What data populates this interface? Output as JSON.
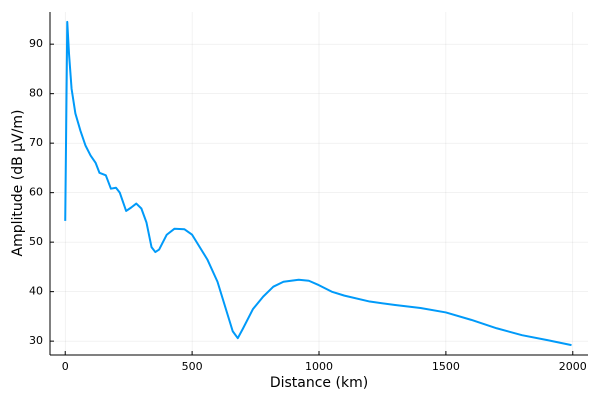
{
  "chart_data": {
    "type": "line",
    "x_label": "Distance (km)",
    "y_label": "Amplitude (dB μV/m)",
    "x": [
      0,
      8,
      15,
      25,
      40,
      60,
      80,
      100,
      120,
      135,
      160,
      180,
      200,
      215,
      240,
      260,
      280,
      300,
      320,
      340,
      355,
      370,
      400,
      430,
      470,
      500,
      530,
      560,
      600,
      630,
      660,
      680,
      700,
      740,
      780,
      820,
      860,
      920,
      960,
      1000,
      1050,
      1100,
      1200,
      1300,
      1400,
      1500,
      1600,
      1700,
      1800,
      1900,
      1995
    ],
    "series": [
      {
        "color": "#009af9",
        "values": [
          54.3,
          94.5,
          88,
          81,
          76,
          72.5,
          69.5,
          67.5,
          66,
          64,
          63.5,
          60.8,
          61,
          60,
          56.3,
          57,
          57.8,
          56.8,
          54,
          49,
          48,
          48.5,
          51.5,
          52.7,
          52.6,
          51.5,
          49,
          46.5,
          42,
          37,
          32,
          30.6,
          32.5,
          36.5,
          39,
          41,
          42,
          42.4,
          42.2,
          41.3,
          40,
          39.2,
          38,
          37.3,
          36.7,
          35.8,
          34.3,
          32.6,
          31.2,
          30.2,
          29.2
        ]
      }
    ],
    "xlim": [
      -60,
      2060
    ],
    "xticks": [
      0,
      500,
      1000,
      1500,
      2000
    ],
    "ylim": [
      27.2,
      96.5
    ],
    "yticks": [
      30,
      40,
      50,
      60,
      70,
      80,
      90
    ],
    "grid": true
  }
}
